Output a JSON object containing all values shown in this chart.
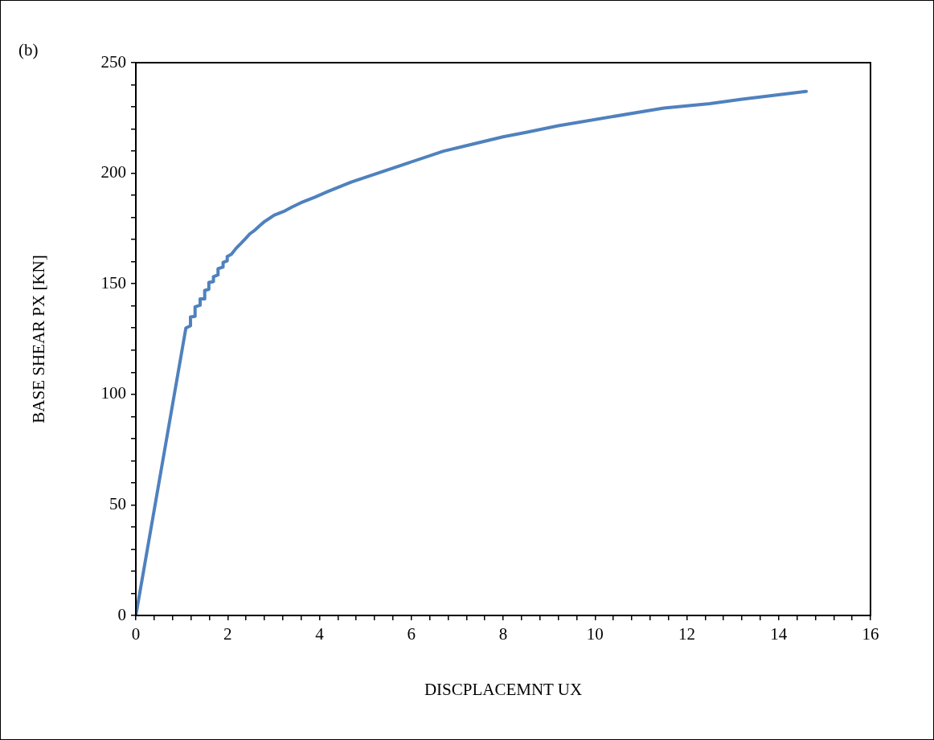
{
  "chart_data": {
    "type": "line",
    "xlabel": "DISCPLACEMNT UX",
    "ylabel": "BASE SHEAR PX [KN]",
    "annotations": [
      "(b)"
    ],
    "x": [
      0,
      1.09,
      1.19,
      1.19,
      1.29,
      1.29,
      1.4,
      1.4,
      1.5,
      1.5,
      1.59,
      1.59,
      1.69,
      1.69,
      1.79,
      1.79,
      1.9,
      1.9,
      1.99,
      1.99,
      2.08,
      2.19,
      2.29,
      2.39,
      2.49,
      2.6,
      2.7,
      2.8,
      2.91,
      3.01,
      3.22,
      3.39,
      3.59,
      3.9,
      4.18,
      4.69,
      6.7,
      7.2,
      7.6,
      8,
      8.5,
      9.2,
      11.5,
      12.5,
      13.2,
      14.6
    ],
    "series": [
      {
        "color": "#4f81bd",
        "values": [
          0,
          130,
          131,
          135,
          135.3,
          139.6,
          140.3,
          143.2,
          143.2,
          147,
          147.5,
          150.6,
          151,
          153.2,
          154,
          156.8,
          157.6,
          159.7,
          160.4,
          162.3,
          163.3,
          166.2,
          168.3,
          170.5,
          172.7,
          174.4,
          176.3,
          178.1,
          179.6,
          181,
          182.7,
          184.6,
          186.6,
          189.2,
          191.7,
          196,
          210,
          212.5,
          214.5,
          216.5,
          218.5,
          221.5,
          229.5,
          231.5,
          233.5,
          237
        ]
      }
    ],
    "xlim": [
      0,
      16
    ],
    "ylim": [
      0,
      250
    ],
    "xticks": [
      0,
      {
        "value": 0.4,
        "label": null
      },
      {
        "value": 0.8,
        "label": null
      },
      {
        "value": 1.2,
        "label": null
      },
      {
        "value": 1.6,
        "label": null
      },
      2,
      {
        "value": 2.4,
        "label": null
      },
      {
        "value": 2.8,
        "label": null
      },
      {
        "value": 3.2,
        "label": null
      },
      {
        "value": 3.6,
        "label": null
      },
      4,
      {
        "value": 4.4,
        "label": null
      },
      {
        "value": 4.8,
        "label": null
      },
      {
        "value": 5.2,
        "label": null
      },
      {
        "value": 5.6,
        "label": null
      },
      6,
      {
        "value": 6.4,
        "label": null
      },
      {
        "value": 6.8,
        "label": null
      },
      {
        "value": 7.2,
        "label": null
      },
      {
        "value": 7.6,
        "label": null
      },
      8,
      {
        "value": 8.4,
        "label": null
      },
      {
        "value": 8.8,
        "label": null
      },
      {
        "value": 9.2,
        "label": null
      },
      {
        "value": 9.6,
        "label": null
      },
      10,
      {
        "value": 10.4,
        "label": null
      },
      {
        "value": 10.8,
        "label": null
      },
      {
        "value": 11.2,
        "label": null
      },
      {
        "value": 11.6,
        "label": null
      },
      12,
      {
        "value": 12.4,
        "label": null
      },
      {
        "value": 12.8,
        "label": null
      },
      {
        "value": 13.2,
        "label": null
      },
      {
        "value": 13.6,
        "label": null
      },
      14,
      {
        "value": 14.4,
        "label": null
      },
      {
        "value": 14.8,
        "label": null
      },
      {
        "value": 15.2,
        "label": null
      },
      {
        "value": 15.6,
        "label": null
      },
      16
    ],
    "yticks": [
      0,
      {
        "value": 10,
        "label": null
      },
      {
        "value": 20,
        "label": null
      },
      {
        "value": 30,
        "label": null
      },
      {
        "value": 40,
        "label": null
      },
      50,
      {
        "value": 60,
        "label": null
      },
      {
        "value": 70,
        "label": null
      },
      {
        "value": 80,
        "label": null
      },
      {
        "value": 90,
        "label": null
      },
      100,
      {
        "value": 110,
        "label": null
      },
      {
        "value": 120,
        "label": null
      },
      {
        "value": 130,
        "label": null
      },
      {
        "value": 140,
        "label": null
      },
      150,
      {
        "value": 160,
        "label": null
      },
      {
        "value": 170,
        "label": null
      },
      {
        "value": 180,
        "label": null
      },
      {
        "value": 190,
        "label": null
      },
      200,
      {
        "value": 210,
        "label": null
      },
      {
        "value": 220,
        "label": null
      },
      {
        "value": 230,
        "label": null
      },
      {
        "value": 240,
        "label": null
      },
      250
    ],
    "grid": false,
    "legend": false,
    "marker": "none",
    "line_style": "solid"
  }
}
